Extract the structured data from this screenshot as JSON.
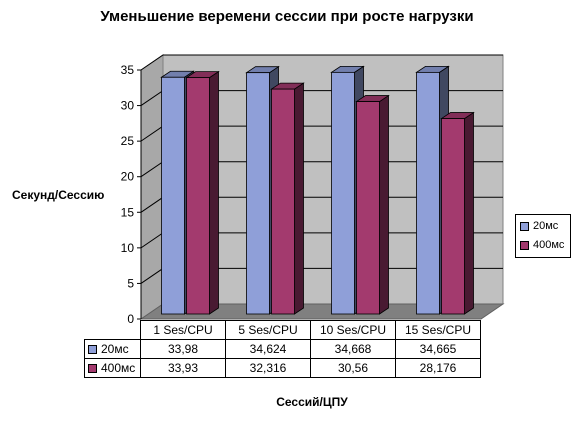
{
  "chart_data": {
    "type": "bar",
    "title": "Уменьшение веремени сессии при росте нагрузки",
    "xlabel": "Сессий/ЦПУ",
    "ylabel": "Секунд/Сессию",
    "categories": [
      "1 Ses/CPU",
      "5 Ses/CPU",
      "10 Ses/CPU",
      "15 Ses/CPU"
    ],
    "series": [
      {
        "name": "20мс",
        "values": [
          33.98,
          34.624,
          34.668,
          34.665
        ],
        "labels": [
          "33,98",
          "34,624",
          "34,668",
          "34,665"
        ],
        "color": "#8f9fd8"
      },
      {
        "name": "400мс",
        "values": [
          33.93,
          32.316,
          30.56,
          28.176
        ],
        "labels": [
          "33,93",
          "32,316",
          "30,56",
          "28,176"
        ],
        "color": "#a33a6e"
      }
    ],
    "ylim": [
      0,
      35
    ],
    "yticks": [
      0,
      5,
      10,
      15,
      20,
      25,
      30,
      35
    ],
    "grid": true,
    "legend": "right",
    "style": "3d-column-with-data-table"
  }
}
